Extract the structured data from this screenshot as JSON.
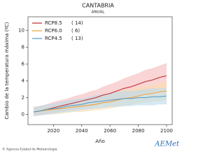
{
  "chart_data": {
    "type": "line",
    "title": "CANTABRIA",
    "subtitle": "ANUAL",
    "y_label": "Cambio de la temperatura máxima (ºC)",
    "x_label": "Año",
    "footer": "© Agencia Estatal de Meteorología",
    "logo": "AEMet",
    "x": [
      2006,
      2010,
      2015,
      2020,
      2025,
      2030,
      2035,
      2040,
      2045,
      2050,
      2055,
      2060,
      2065,
      2070,
      2075,
      2080,
      2085,
      2090,
      2095,
      2100
    ],
    "xlim": [
      2002,
      2104
    ],
    "xticks": [
      2020,
      2040,
      2060,
      2080,
      2100
    ],
    "ylim": [
      -1.2,
      11.6
    ],
    "yticks": [
      0,
      2,
      4,
      6,
      8,
      10
    ],
    "legend": "upper left",
    "series": [
      {
        "name": "RCP8.5",
        "count": "( 14)",
        "color": "#c0282b",
        "band_color": "#f5b9b9",
        "values": [
          0.3,
          0.4,
          0.6,
          0.8,
          1.0,
          1.2,
          1.4,
          1.6,
          1.8,
          2.0,
          2.3,
          2.5,
          2.8,
          3.1,
          3.3,
          3.6,
          3.9,
          4.1,
          4.4,
          4.6
        ],
        "lower": [
          -0.2,
          -0.1,
          0.0,
          0.2,
          0.3,
          0.5,
          0.6,
          0.8,
          0.9,
          1.1,
          1.3,
          1.4,
          1.6,
          1.9,
          2.0,
          2.3,
          2.5,
          2.7,
          2.9,
          3.1
        ],
        "upper": [
          0.9,
          1.0,
          1.2,
          1.5,
          1.7,
          1.9,
          2.2,
          2.4,
          2.7,
          2.9,
          3.3,
          3.6,
          3.9,
          4.3,
          4.6,
          4.9,
          5.3,
          5.5,
          5.8,
          6.1
        ]
      },
      {
        "name": "RCP6.0",
        "count": "(  6)",
        "color": "#f0a030",
        "band_color": "#fbdcae",
        "values": [
          0.3,
          0.4,
          0.5,
          0.6,
          0.7,
          0.8,
          0.9,
          1.0,
          1.1,
          1.2,
          1.4,
          1.5,
          1.7,
          1.9,
          2.0,
          2.2,
          2.4,
          2.5,
          2.7,
          2.8
        ],
        "lower": [
          -0.2,
          -0.1,
          0.0,
          0.0,
          0.1,
          0.2,
          0.3,
          0.3,
          0.4,
          0.5,
          0.6,
          0.7,
          0.9,
          1.0,
          1.1,
          1.3,
          1.4,
          1.5,
          1.6,
          1.7
        ],
        "upper": [
          0.9,
          1.0,
          1.1,
          1.2,
          1.3,
          1.5,
          1.6,
          1.7,
          1.9,
          2.0,
          2.3,
          2.4,
          2.6,
          2.9,
          3.0,
          3.2,
          3.4,
          3.5,
          3.7,
          3.9
        ]
      },
      {
        "name": "RCP4.5",
        "count": "( 13)",
        "color": "#4f9acb",
        "band_color": "#b9dbee",
        "values": [
          0.3,
          0.4,
          0.6,
          0.7,
          0.8,
          1.0,
          1.1,
          1.2,
          1.4,
          1.5,
          1.6,
          1.7,
          1.8,
          1.9,
          1.9,
          2.0,
          2.0,
          2.1,
          2.1,
          2.2
        ],
        "lower": [
          -0.2,
          -0.1,
          0.0,
          0.1,
          0.2,
          0.3,
          0.4,
          0.5,
          0.6,
          0.7,
          0.8,
          0.9,
          0.9,
          1.0,
          1.0,
          1.1,
          1.1,
          1.1,
          1.2,
          1.2
        ],
        "upper": [
          0.9,
          1.0,
          1.2,
          1.3,
          1.5,
          1.7,
          1.8,
          1.9,
          2.1,
          2.3,
          2.4,
          2.5,
          2.7,
          2.8,
          2.8,
          2.9,
          3.0,
          3.1,
          3.1,
          3.2
        ]
      }
    ]
  }
}
